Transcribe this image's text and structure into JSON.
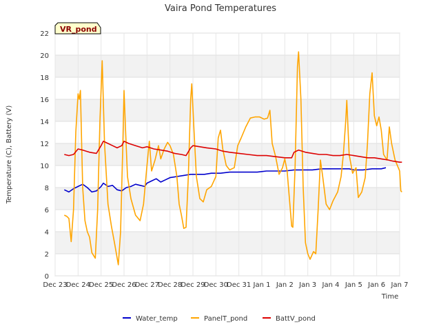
{
  "chart_data": {
    "type": "line",
    "title": "Vaira Pond Temperatures",
    "xlabel": "Time",
    "ylabel": "Temperature (C), Battery (V)",
    "badge": "VR_pond",
    "xlim": [
      0,
      15
    ],
    "ylim": [
      0,
      22
    ],
    "x_ticks": [
      {
        "x": 0,
        "label": "Dec 23"
      },
      {
        "x": 1,
        "label": "Dec 24"
      },
      {
        "x": 2,
        "label": "Dec 25"
      },
      {
        "x": 3,
        "label": "Dec 26"
      },
      {
        "x": 4,
        "label": "Dec 27"
      },
      {
        "x": 5,
        "label": "Dec 28"
      },
      {
        "x": 6,
        "label": "Dec 29"
      },
      {
        "x": 7,
        "label": "Dec 30"
      },
      {
        "x": 8,
        "label": "Dec 31"
      },
      {
        "x": 9,
        "label": "Jan 1"
      },
      {
        "x": 10,
        "label": "Jan 2"
      },
      {
        "x": 11,
        "label": "Jan 3"
      },
      {
        "x": 12,
        "label": "Jan 4"
      },
      {
        "x": 13,
        "label": "Jan 5"
      },
      {
        "x": 14,
        "label": "Jan 6"
      },
      {
        "x": 15,
        "label": "Jan 7"
      }
    ],
    "y_ticks": [
      0,
      2,
      4,
      6,
      8,
      10,
      12,
      14,
      16,
      18,
      20,
      22
    ],
    "grid": true,
    "legend_position": "bottom",
    "series": [
      {
        "name": "Water_temp",
        "color": "#0000cc",
        "points": [
          [
            0.4,
            7.8
          ],
          [
            0.6,
            7.6
          ],
          [
            0.8,
            7.9
          ],
          [
            1.0,
            8.1
          ],
          [
            1.2,
            8.3
          ],
          [
            1.4,
            8.0
          ],
          [
            1.6,
            7.6
          ],
          [
            1.8,
            7.7
          ],
          [
            2.0,
            8.1
          ],
          [
            2.1,
            8.4
          ],
          [
            2.3,
            8.1
          ],
          [
            2.5,
            8.2
          ],
          [
            2.7,
            7.8
          ],
          [
            2.9,
            7.7
          ],
          [
            3.1,
            8.0
          ],
          [
            3.3,
            8.1
          ],
          [
            3.5,
            8.3
          ],
          [
            3.7,
            8.2
          ],
          [
            3.9,
            8.1
          ],
          [
            4.0,
            8.4
          ],
          [
            4.2,
            8.6
          ],
          [
            4.4,
            8.8
          ],
          [
            4.6,
            8.5
          ],
          [
            4.8,
            8.7
          ],
          [
            5.0,
            8.9
          ],
          [
            5.3,
            9.0
          ],
          [
            5.6,
            9.1
          ],
          [
            5.9,
            9.2
          ],
          [
            6.2,
            9.2
          ],
          [
            6.5,
            9.2
          ],
          [
            6.8,
            9.3
          ],
          [
            7.2,
            9.3
          ],
          [
            7.6,
            9.4
          ],
          [
            8.0,
            9.4
          ],
          [
            8.4,
            9.4
          ],
          [
            8.8,
            9.4
          ],
          [
            9.2,
            9.5
          ],
          [
            9.6,
            9.5
          ],
          [
            10.0,
            9.5
          ],
          [
            10.4,
            9.6
          ],
          [
            10.8,
            9.6
          ],
          [
            11.2,
            9.6
          ],
          [
            11.6,
            9.7
          ],
          [
            12.0,
            9.7
          ],
          [
            12.4,
            9.7
          ],
          [
            12.8,
            9.7
          ],
          [
            13.0,
            9.6
          ],
          [
            13.4,
            9.6
          ],
          [
            13.8,
            9.7
          ],
          [
            14.2,
            9.7
          ],
          [
            14.4,
            9.8
          ]
        ]
      },
      {
        "name": "PanelT_pond",
        "color": "#ffa500",
        "points": [
          [
            0.4,
            5.5
          ],
          [
            0.5,
            5.4
          ],
          [
            0.6,
            5.2
          ],
          [
            0.7,
            3.1
          ],
          [
            0.8,
            6.0
          ],
          [
            0.9,
            13.0
          ],
          [
            1.0,
            16.5
          ],
          [
            1.05,
            16.0
          ],
          [
            1.1,
            16.8
          ],
          [
            1.2,
            8.0
          ],
          [
            1.3,
            5.0
          ],
          [
            1.4,
            4.0
          ],
          [
            1.5,
            3.5
          ],
          [
            1.6,
            2.1
          ],
          [
            1.75,
            1.6
          ],
          [
            1.85,
            6.0
          ],
          [
            1.95,
            14.0
          ],
          [
            2.05,
            19.5
          ],
          [
            2.15,
            12.0
          ],
          [
            2.3,
            6.5
          ],
          [
            2.45,
            4.5
          ],
          [
            2.6,
            2.8
          ],
          [
            2.75,
            1.0
          ],
          [
            2.85,
            4.0
          ],
          [
            2.95,
            12.0
          ],
          [
            3.0,
            16.8
          ],
          [
            3.05,
            14.0
          ],
          [
            3.15,
            9.0
          ],
          [
            3.3,
            7.0
          ],
          [
            3.5,
            5.5
          ],
          [
            3.7,
            5.0
          ],
          [
            3.85,
            6.5
          ],
          [
            4.0,
            10.0
          ],
          [
            4.1,
            12.2
          ],
          [
            4.2,
            9.5
          ],
          [
            4.35,
            10.5
          ],
          [
            4.5,
            11.8
          ],
          [
            4.6,
            10.6
          ],
          [
            4.75,
            11.5
          ],
          [
            4.9,
            12.1
          ],
          [
            5.0,
            11.8
          ],
          [
            5.15,
            11.0
          ],
          [
            5.3,
            9.0
          ],
          [
            5.4,
            6.5
          ],
          [
            5.5,
            5.5
          ],
          [
            5.6,
            4.3
          ],
          [
            5.7,
            4.4
          ],
          [
            5.8,
            9.0
          ],
          [
            5.9,
            16.0
          ],
          [
            5.95,
            17.4
          ],
          [
            6.05,
            13.0
          ],
          [
            6.15,
            9.0
          ],
          [
            6.3,
            7.0
          ],
          [
            6.45,
            6.7
          ],
          [
            6.6,
            7.8
          ],
          [
            6.8,
            8.1
          ],
          [
            7.0,
            9.0
          ],
          [
            7.1,
            12.5
          ],
          [
            7.2,
            13.2
          ],
          [
            7.3,
            11.5
          ],
          [
            7.45,
            10.0
          ],
          [
            7.6,
            9.6
          ],
          [
            7.8,
            9.8
          ],
          [
            7.95,
            11.8
          ],
          [
            8.1,
            12.5
          ],
          [
            8.3,
            13.5
          ],
          [
            8.5,
            14.3
          ],
          [
            8.7,
            14.4
          ],
          [
            8.9,
            14.4
          ],
          [
            9.1,
            14.2
          ],
          [
            9.25,
            14.3
          ],
          [
            9.35,
            15.0
          ],
          [
            9.45,
            12.0
          ],
          [
            9.6,
            10.8
          ],
          [
            9.75,
            9.2
          ],
          [
            9.9,
            9.8
          ],
          [
            10.0,
            10.6
          ],
          [
            10.1,
            9.5
          ],
          [
            10.2,
            7.0
          ],
          [
            10.3,
            4.5
          ],
          [
            10.35,
            4.4
          ],
          [
            10.45,
            10.0
          ],
          [
            10.55,
            19.0
          ],
          [
            10.6,
            20.3
          ],
          [
            10.7,
            16.0
          ],
          [
            10.8,
            8.0
          ],
          [
            10.9,
            3.0
          ],
          [
            11.0,
            2.0
          ],
          [
            11.1,
            1.5
          ],
          [
            11.25,
            2.2
          ],
          [
            11.35,
            2.0
          ],
          [
            11.45,
            6.0
          ],
          [
            11.55,
            10.5
          ],
          [
            11.65,
            9.0
          ],
          [
            11.8,
            6.5
          ],
          [
            11.95,
            6.0
          ],
          [
            12.1,
            6.8
          ],
          [
            12.3,
            7.6
          ],
          [
            12.45,
            9.0
          ],
          [
            12.55,
            11.0
          ],
          [
            12.65,
            14.0
          ],
          [
            12.7,
            15.9
          ],
          [
            12.8,
            11.0
          ],
          [
            12.95,
            9.3
          ],
          [
            13.1,
            9.8
          ],
          [
            13.2,
            7.1
          ],
          [
            13.35,
            7.6
          ],
          [
            13.5,
            8.9
          ],
          [
            13.6,
            12.0
          ],
          [
            13.7,
            16.5
          ],
          [
            13.8,
            18.4
          ],
          [
            13.9,
            14.5
          ],
          [
            14.0,
            13.6
          ],
          [
            14.1,
            14.4
          ],
          [
            14.2,
            13.2
          ],
          [
            14.3,
            11.0
          ],
          [
            14.45,
            10.5
          ],
          [
            14.55,
            13.5
          ],
          [
            14.65,
            12.0
          ],
          [
            14.8,
            10.5
          ],
          [
            14.9,
            10.0
          ],
          [
            15.0,
            9.5
          ],
          [
            15.05,
            7.7
          ],
          [
            15.1,
            7.6
          ]
        ]
      },
      {
        "name": "BattV_pond",
        "color": "#dd0000",
        "points": [
          [
            0.4,
            11.0
          ],
          [
            0.6,
            10.9
          ],
          [
            0.8,
            11.0
          ],
          [
            1.0,
            11.5
          ],
          [
            1.2,
            11.4
          ],
          [
            1.5,
            11.2
          ],
          [
            1.8,
            11.1
          ],
          [
            2.0,
            11.8
          ],
          [
            2.1,
            12.2
          ],
          [
            2.3,
            12.0
          ],
          [
            2.5,
            11.8
          ],
          [
            2.7,
            11.6
          ],
          [
            2.9,
            11.8
          ],
          [
            3.0,
            12.2
          ],
          [
            3.2,
            12.0
          ],
          [
            3.5,
            11.8
          ],
          [
            3.8,
            11.6
          ],
          [
            4.0,
            11.7
          ],
          [
            4.3,
            11.5
          ],
          [
            4.6,
            11.4
          ],
          [
            4.9,
            11.3
          ],
          [
            5.2,
            11.1
          ],
          [
            5.5,
            11.0
          ],
          [
            5.7,
            10.9
          ],
          [
            5.9,
            11.6
          ],
          [
            6.0,
            11.8
          ],
          [
            6.3,
            11.7
          ],
          [
            6.6,
            11.6
          ],
          [
            7.0,
            11.5
          ],
          [
            7.3,
            11.3
          ],
          [
            7.6,
            11.2
          ],
          [
            8.0,
            11.1
          ],
          [
            8.4,
            11.0
          ],
          [
            8.8,
            10.9
          ],
          [
            9.2,
            10.9
          ],
          [
            9.6,
            10.8
          ],
          [
            10.0,
            10.7
          ],
          [
            10.3,
            10.7
          ],
          [
            10.4,
            11.2
          ],
          [
            10.6,
            11.4
          ],
          [
            10.9,
            11.2
          ],
          [
            11.2,
            11.1
          ],
          [
            11.5,
            11.0
          ],
          [
            11.8,
            11.0
          ],
          [
            12.1,
            10.9
          ],
          [
            12.4,
            10.9
          ],
          [
            12.7,
            11.0
          ],
          [
            13.0,
            10.9
          ],
          [
            13.3,
            10.8
          ],
          [
            13.6,
            10.7
          ],
          [
            13.9,
            10.7
          ],
          [
            14.2,
            10.6
          ],
          [
            14.5,
            10.5
          ],
          [
            14.7,
            10.4
          ],
          [
            15.0,
            10.3
          ],
          [
            15.1,
            10.3
          ]
        ]
      }
    ]
  }
}
